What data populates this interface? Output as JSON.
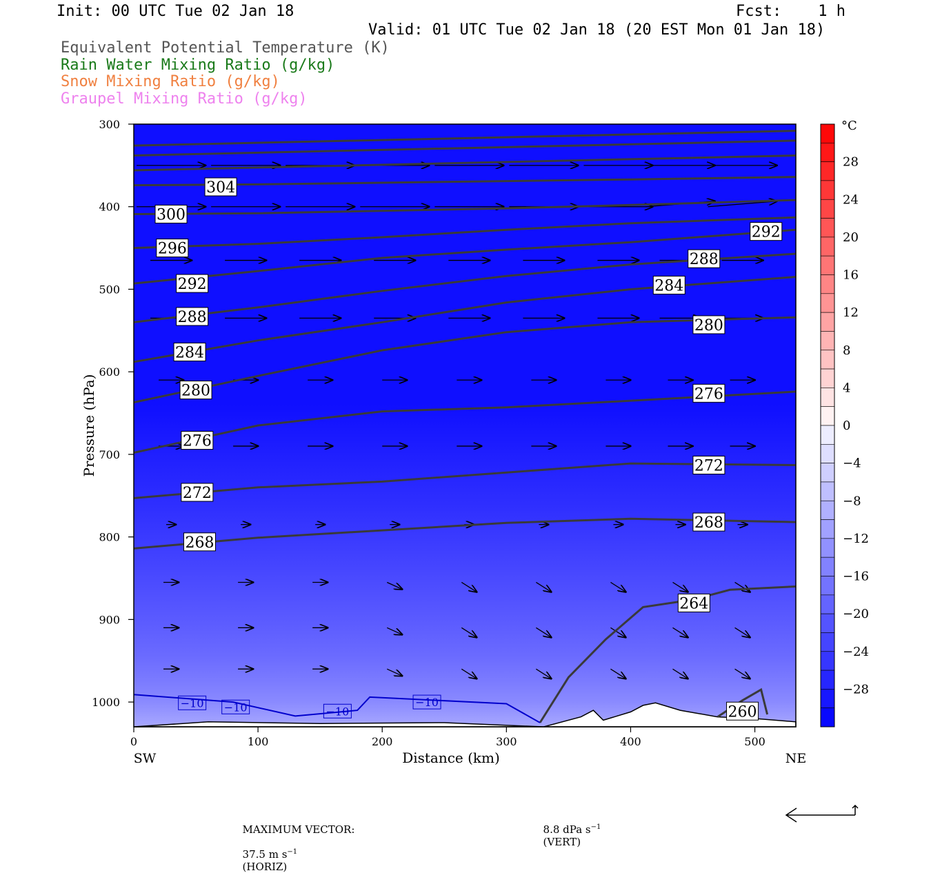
{
  "header": {
    "init": "Init: 00 UTC Tue 02 Jan 18",
    "fcst": "Fcst:    1 h",
    "valid": "Valid: 01 UTC Tue 02 Jan 18 (20 EST Mon 01 Jan 18)",
    "fields": [
      {
        "text": "Equivalent Potential Temperature (K)",
        "color": "#555555"
      },
      {
        "text": "Rain Water Mixing Ratio (g/kg)",
        "color": "#1a7a1a"
      },
      {
        "text": "Snow Mixing Ratio (g/kg)",
        "color": "#f08040"
      },
      {
        "text": "Graupel Mixing Ratio (g/kg)",
        "color": "#ee82ee"
      }
    ]
  },
  "chart_data": {
    "type": "heatmap",
    "title": "",
    "xlabel": "Distance (km)",
    "ylabel": "Pressure (hPa)",
    "xlim": [
      0,
      533
    ],
    "ylim": [
      1030,
      300
    ],
    "x_ticks": [
      0,
      100,
      200,
      300,
      400,
      500
    ],
    "y_ticks": [
      300,
      400,
      500,
      600,
      700,
      800,
      900,
      1000
    ],
    "x_end_labels": {
      "left": "SW",
      "right": "NE"
    },
    "colorbar": {
      "unit": "°C",
      "tick_labels": [
        "28",
        "24",
        "20",
        "16",
        "12",
        "8",
        "4",
        "0",
        "−4",
        "−8",
        "−12",
        "−16",
        "−20",
        "−24",
        "−28"
      ],
      "tick_values": [
        28,
        24,
        20,
        16,
        12,
        8,
        4,
        0,
        -4,
        -8,
        -12,
        -16,
        -20,
        -24,
        -28
      ],
      "range": [
        -32,
        32
      ],
      "step": 2
    },
    "theta_e_contours": [
      {
        "value": 304,
        "label": "304",
        "points": [
          [
            0,
            374
          ],
          [
            100,
            373
          ],
          [
            200,
            371
          ],
          [
            300,
            369
          ],
          [
            400,
            367
          ],
          [
            533,
            364
          ]
        ],
        "labels_at": [
          [
            70,
            376
          ]
        ]
      },
      {
        "value": 300,
        "label": "300",
        "points": [
          [
            0,
            409
          ],
          [
            100,
            408
          ],
          [
            200,
            405
          ],
          [
            300,
            402
          ],
          [
            400,
            398
          ],
          [
            533,
            392
          ]
        ],
        "labels_at": [
          [
            30,
            409
          ]
        ]
      },
      {
        "value": 296,
        "label": "296",
        "points": [
          [
            0,
            450
          ],
          [
            100,
            445
          ],
          [
            200,
            437
          ],
          [
            300,
            428
          ],
          [
            400,
            420
          ],
          [
            533,
            413
          ]
        ],
        "labels_at": [
          [
            31,
            450
          ]
        ]
      },
      {
        "value": 292,
        "label": "292",
        "points": [
          [
            0,
            493
          ],
          [
            100,
            478
          ],
          [
            200,
            462
          ],
          [
            300,
            452
          ],
          [
            400,
            443
          ],
          [
            533,
            428
          ]
        ],
        "labels_at": [
          [
            47,
            493
          ],
          [
            509,
            430
          ]
        ]
      },
      {
        "value": 288,
        "label": "288",
        "points": [
          [
            0,
            540
          ],
          [
            100,
            522
          ],
          [
            200,
            502
          ],
          [
            300,
            484
          ],
          [
            400,
            470
          ],
          [
            533,
            457
          ]
        ],
        "labels_at": [
          [
            47,
            533
          ],
          [
            459,
            463
          ]
        ]
      },
      {
        "value": 284,
        "label": "284",
        "points": [
          [
            0,
            588
          ],
          [
            100,
            562
          ],
          [
            200,
            540
          ],
          [
            300,
            516
          ],
          [
            400,
            500
          ],
          [
            533,
            485
          ]
        ],
        "labels_at": [
          [
            45,
            576
          ],
          [
            431,
            495
          ]
        ]
      },
      {
        "value": 280,
        "label": "280",
        "points": [
          [
            0,
            637
          ],
          [
            100,
            605
          ],
          [
            200,
            574
          ],
          [
            300,
            552
          ],
          [
            400,
            540
          ],
          [
            533,
            534
          ]
        ],
        "labels_at": [
          [
            50,
            622
          ],
          [
            463,
            543
          ]
        ]
      },
      {
        "value": 276,
        "label": "276",
        "points": [
          [
            0,
            698
          ],
          [
            100,
            665
          ],
          [
            200,
            648
          ],
          [
            300,
            643
          ],
          [
            400,
            635
          ],
          [
            533,
            624
          ]
        ],
        "labels_at": [
          [
            51,
            683
          ],
          [
            463,
            626
          ]
        ]
      },
      {
        "value": 272,
        "label": "272",
        "points": [
          [
            0,
            753
          ],
          [
            100,
            740
          ],
          [
            200,
            733
          ],
          [
            300,
            722
          ],
          [
            400,
            711
          ],
          [
            533,
            713
          ]
        ],
        "labels_at": [
          [
            51,
            746
          ],
          [
            463,
            713
          ]
        ]
      },
      {
        "value": 268,
        "label": "268",
        "points": [
          [
            0,
            814
          ],
          [
            100,
            801
          ],
          [
            200,
            792
          ],
          [
            300,
            783
          ],
          [
            400,
            778
          ],
          [
            533,
            782
          ]
        ],
        "labels_at": [
          [
            53,
            806
          ],
          [
            463,
            782
          ]
        ]
      },
      {
        "value": 264,
        "label": "264",
        "points": [
          [
            327,
            1025
          ],
          [
            350,
            970
          ],
          [
            380,
            924
          ],
          [
            410,
            885
          ],
          [
            450,
            876
          ],
          [
            480,
            864
          ],
          [
            533,
            860
          ]
        ],
        "labels_at": [
          [
            451,
            880
          ]
        ]
      },
      {
        "value": 260,
        "label": "260",
        "points": [
          [
            470,
            1018
          ],
          [
            490,
            998
          ],
          [
            505,
            985
          ],
          [
            510,
            1015
          ]
        ],
        "labels_at": [
          [
            490,
            1011
          ]
        ]
      }
    ],
    "temperature_contour_minus10": {
      "value": -10,
      "label": "−10",
      "points": [
        [
          0,
          991
        ],
        [
          80,
          1000
        ],
        [
          130,
          1017
        ],
        [
          180,
          1010
        ],
        [
          190,
          994
        ],
        [
          300,
          1002
        ],
        [
          327,
          1025
        ]
      ],
      "labels_at": [
        [
          47,
          1001
        ],
        [
          82,
          1006
        ],
        [
          164,
          1011
        ],
        [
          236,
          1000
        ]
      ]
    },
    "wind_vectors": {
      "max_horizontal": "37.5 m s",
      "max_horizontal_unit": "(HORIZ)",
      "max_vertical": "8.8 dPa s",
      "max_vertical_unit": "(VERT)",
      "rows_hPa": [
        350,
        400,
        465,
        535,
        610,
        690,
        785,
        855,
        910,
        960
      ],
      "cols_km": [
        30,
        90,
        150,
        210,
        270,
        330,
        390,
        440,
        490
      ]
    }
  },
  "footer": {
    "label": "MAXIMUM VECTOR:"
  }
}
